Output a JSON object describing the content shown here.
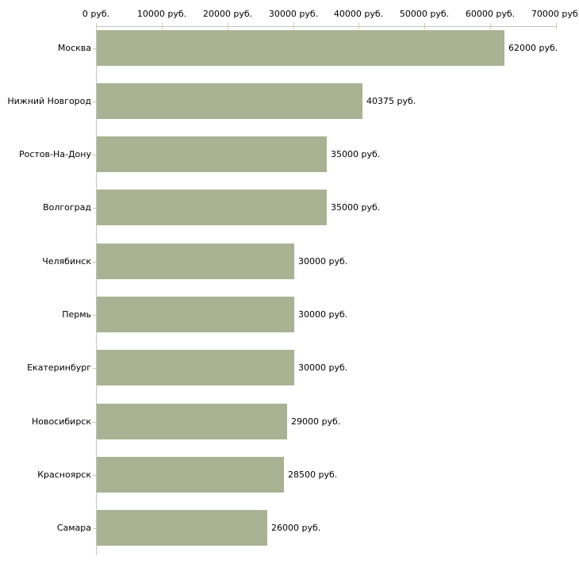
{
  "chart_data": {
    "type": "bar",
    "orientation": "horizontal",
    "categories": [
      "Москва",
      "Нижний Новгород",
      "Ростов-На-Дону",
      "Волгоград",
      "Челябинск",
      "Пермь",
      "Екатеринбург",
      "Новосибирск",
      "Красноярск",
      "Самара"
    ],
    "values": [
      62000,
      40375,
      35000,
      35000,
      30000,
      30000,
      30000,
      29000,
      28500,
      26000
    ],
    "value_labels": [
      "62000 руб.",
      "40375 руб.",
      "35000 руб.",
      "35000 руб.",
      "30000 руб.",
      "30000 руб.",
      "30000 руб.",
      "29000 руб.",
      "28500 руб.",
      "26000 руб."
    ],
    "unit": "руб.",
    "x_axis": {
      "position": "top",
      "min": 0,
      "max": 70000,
      "step": 10000,
      "tick_labels": [
        "0 руб.",
        "10000 руб.",
        "20000 руб.",
        "30000 руб.",
        "40000 руб.",
        "50000 руб.",
        "60000 руб.",
        "70000 руб."
      ]
    },
    "grid": false,
    "legend": false,
    "colors": {
      "bar": "#a9b293",
      "axis_line": "#c3c3c3",
      "tick": "#c9cba4",
      "text": "#000000",
      "background": "#ffffff"
    }
  }
}
